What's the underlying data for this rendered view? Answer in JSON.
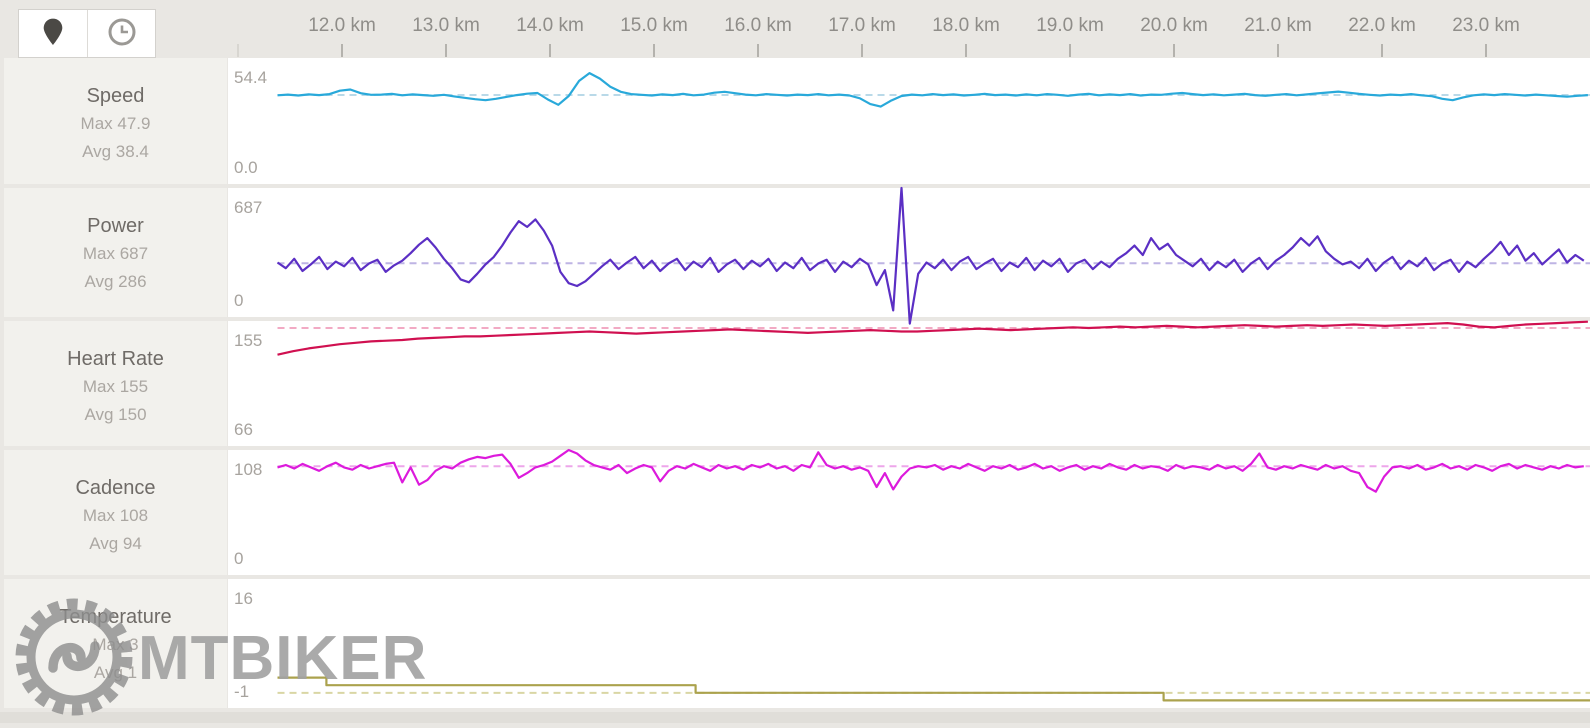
{
  "toolbar": {
    "buttons": [
      {
        "id": "map",
        "icon": "map-pin-icon",
        "active": true
      },
      {
        "id": "time",
        "icon": "clock-icon",
        "active": false
      }
    ]
  },
  "x_axis": {
    "unit": "km",
    "tick_values": [
      12,
      13,
      14,
      15,
      16,
      17,
      18,
      19,
      20,
      21,
      22,
      23
    ],
    "tick_labels": [
      "12.0 km",
      "13.0 km",
      "14.0 km",
      "15.0 km",
      "16.0 km",
      "17.0 km",
      "18.0 km",
      "19.0 km",
      "20.0 km",
      "21.0 km",
      "22.0 km",
      "23.0 km"
    ],
    "minor_tick_values": [
      11
    ],
    "domain_km": [
      10.9,
      24.05
    ]
  },
  "watermark": {
    "text": "MTBIKER"
  },
  "chart_data": [
    {
      "type": "line",
      "title": "Speed",
      "max_label": "Max 47.9",
      "avg_label": "Avg 38.4",
      "y_max_label": "54.4",
      "y_min_label": "0.0",
      "axis": {
        "min": 0,
        "max": 54.4
      },
      "avg_value": 38.4,
      "color": "#29a9da",
      "avg_color": "#b9d9e8",
      "series": {
        "start_km": 11.38,
        "step_km": 0.1,
        "values": [
          38.3,
          38.6,
          38.2,
          38.7,
          38.4,
          38.8,
          40.3,
          40.8,
          39.2,
          38.5,
          38.6,
          38.9,
          38.3,
          38.7,
          38.4,
          38.1,
          38.5,
          37.8,
          37.2,
          36.6,
          36.2,
          36.8,
          37.6,
          38.4,
          39.0,
          39.3,
          36.5,
          34.2,
          38.0,
          44.5,
          47.9,
          45.5,
          42.0,
          39.8,
          38.8,
          38.5,
          38.2,
          38.7,
          38.4,
          38.9,
          38.3,
          38.6,
          39.4,
          39.8,
          39.2,
          38.6,
          38.3,
          38.8,
          38.5,
          38.2,
          38.6,
          38.4,
          38.8,
          38.3,
          38.6,
          38.2,
          37.0,
          34.5,
          33.4,
          36.0,
          38.0,
          38.6,
          38.3,
          38.8,
          38.4,
          38.7,
          38.2,
          38.5,
          38.9,
          38.4,
          38.6,
          38.2,
          38.7,
          38.3,
          38.8,
          38.5,
          38.1,
          38.6,
          38.9,
          38.3,
          38.7,
          38.4,
          38.8,
          38.2,
          38.6,
          38.5,
          39.0,
          39.3,
          38.8,
          38.4,
          38.7,
          38.3,
          38.6,
          38.9,
          38.4,
          38.1,
          38.5,
          38.8,
          38.3,
          38.7,
          39.1,
          39.5,
          39.9,
          39.4,
          38.9,
          38.5,
          38.2,
          38.6,
          38.4,
          38.8,
          38.3,
          37.9,
          36.8,
          36.2,
          37.4,
          38.3,
          38.7,
          38.4,
          38.8,
          38.5,
          38.2,
          38.6,
          38.3,
          38.0,
          37.7,
          38.1,
          38.4
        ]
      }
    },
    {
      "type": "line",
      "title": "Power",
      "max_label": "Max 687",
      "avg_label": "Avg 286",
      "y_max_label": "687",
      "y_min_label": "0",
      "axis": {
        "min": 0,
        "max": 687
      },
      "avg_value": 286,
      "color": "#5b2fc4",
      "avg_color": "#beb4e4",
      "series": {
        "start_km": 11.38,
        "step_km": 0.08,
        "values": [
          290,
          260,
          310,
          245,
          280,
          320,
          255,
          295,
          270,
          315,
          250,
          285,
          305,
          240,
          275,
          300,
          340,
          385,
          420,
          370,
          310,
          260,
          200,
          185,
          230,
          280,
          320,
          380,
          450,
          510,
          480,
          520,
          460,
          380,
          240,
          180,
          165,
          190,
          230,
          270,
          305,
          255,
          290,
          320,
          260,
          300,
          245,
          285,
          310,
          250,
          295,
          265,
          315,
          240,
          280,
          305,
          255,
          300,
          270,
          310,
          245,
          290,
          260,
          315,
          250,
          285,
          305,
          240,
          295,
          265,
          310,
          280,
          170,
          250,
          35,
          687,
          -35,
          230,
          290,
          260,
          305,
          250,
          295,
          320,
          255,
          285,
          310,
          245,
          290,
          265,
          315,
          250,
          300,
          270,
          310,
          240,
          285,
          305,
          255,
          295,
          265,
          310,
          340,
          380,
          330,
          420,
          360,
          390,
          330,
          300,
          270,
          310,
          250,
          295,
          265,
          305,
          240,
          285,
          315,
          255,
          300,
          330,
          370,
          420,
          380,
          430,
          350,
          310,
          280,
          295,
          260,
          310,
          245,
          290,
          320,
          255,
          300,
          270,
          315,
          250,
          285,
          305,
          240,
          295,
          265,
          310,
          350,
          400,
          330,
          380,
          300,
          340,
          280,
          320,
          360,
          290,
          330,
          300
        ]
      }
    },
    {
      "type": "line",
      "title": "Heart Rate",
      "max_label": "Max 155",
      "avg_label": "Avg 150",
      "y_max_label": "155",
      "y_min_label": "66",
      "axis": {
        "min": 66,
        "max": 155
      },
      "avg_value": 150,
      "color": "#d01050",
      "avg_color": "#f2aac4",
      "series": {
        "start_km": 11.38,
        "step_km": 0.15,
        "values": [
          131,
          133.5,
          135.5,
          137,
          138.5,
          139.5,
          140.5,
          141,
          141.5,
          142.5,
          143,
          143.5,
          144,
          144,
          144.5,
          145,
          145.5,
          146,
          146.5,
          147,
          147.5,
          147,
          146.5,
          146,
          146.5,
          147,
          147.5,
          148,
          148.5,
          149,
          148.5,
          148,
          147.5,
          147,
          146.5,
          147,
          147.5,
          148,
          148.5,
          148,
          147.5,
          147.5,
          148,
          148.5,
          149,
          149.5,
          149,
          148.5,
          149,
          149.5,
          150,
          150.5,
          150,
          150.5,
          151,
          150.5,
          151,
          151.5,
          151,
          150.5,
          151,
          151.5,
          152,
          151.5,
          151,
          151.5,
          152,
          151.5,
          152,
          152.5,
          152,
          151.5,
          152,
          152.5,
          153,
          153.5,
          152.5,
          151,
          150.5,
          151.5,
          152.5,
          153,
          153.5,
          154,
          154.5
        ]
      }
    },
    {
      "type": "line",
      "title": "Cadence",
      "max_label": "Max 108",
      "avg_label": "Avg 94",
      "y_max_label": "108",
      "y_min_label": "0",
      "axis": {
        "min": 0,
        "max": 108
      },
      "avg_value": 94,
      "color": "#dc1adc",
      "avg_color": "#eda6ea",
      "series": {
        "start_km": 11.38,
        "step_km": 0.08,
        "values": [
          93,
          95,
          92,
          96,
          93,
          90,
          94,
          97,
          93,
          91,
          95,
          92,
          94,
          96,
          97,
          80,
          93,
          78,
          82,
          90,
          94,
          92,
          97,
          100,
          102,
          101,
          103,
          104,
          96,
          84,
          88,
          93,
          95,
          98,
          103,
          108,
          105,
          99,
          95,
          93,
          91,
          95,
          88,
          92,
          95,
          93,
          81,
          90,
          94,
          92,
          96,
          93,
          90,
          95,
          92,
          94,
          91,
          95,
          93,
          96,
          92,
          94,
          90,
          95,
          93,
          106,
          95,
          92,
          94,
          91,
          93,
          90,
          76,
          88,
          74,
          85,
          92,
          94,
          93,
          95,
          91,
          94,
          92,
          96,
          93,
          90,
          94,
          92,
          95,
          91,
          93,
          96,
          92,
          94,
          90,
          93,
          95,
          91,
          94,
          92,
          96,
          93,
          91,
          95,
          92,
          94,
          93,
          90,
          95,
          92,
          94,
          93,
          91,
          95,
          92,
          94,
          90,
          96,
          105,
          93,
          91,
          94,
          92,
          95,
          93,
          91,
          95,
          92,
          94,
          90,
          88,
          76,
          72,
          85,
          93,
          94,
          92,
          95,
          91,
          93,
          96,
          92,
          94,
          91,
          95,
          93,
          90,
          94,
          96,
          92,
          95,
          93,
          91,
          94,
          92,
          95,
          93,
          94
        ]
      }
    },
    {
      "type": "step",
      "title": "Temperature",
      "max_label": "Max 3",
      "avg_label": "Avg 1",
      "y_max_label": "16",
      "y_min_label": "-1",
      "axis": {
        "min": -1,
        "max": 16
      },
      "avg_value": 1,
      "color": "#aba24d",
      "avg_color": "#d9d6a4",
      "series": {
        "points": [
          [
            11.38,
            3
          ],
          [
            11.85,
            3
          ],
          [
            11.85,
            2
          ],
          [
            15.4,
            2
          ],
          [
            15.4,
            1
          ],
          [
            19.9,
            1
          ],
          [
            19.9,
            0
          ],
          [
            24.05,
            0
          ]
        ]
      }
    }
  ]
}
